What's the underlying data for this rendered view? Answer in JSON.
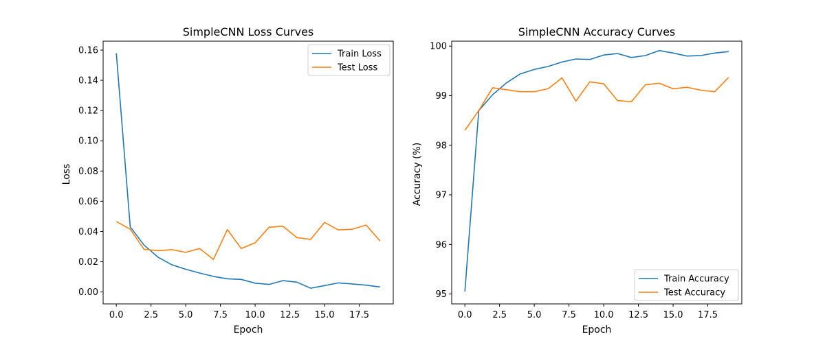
{
  "chart_data": [
    {
      "type": "line",
      "title": "SimpleCNN Loss Curves",
      "xlabel": "Epoch",
      "ylabel": "Loss",
      "xlim": [
        -0.95,
        19.95
      ],
      "ylim": [
        -0.0079,
        0.1659
      ],
      "x_ticks": [
        0,
        2.5,
        5,
        7.5,
        10,
        12.5,
        15,
        17.5
      ],
      "x_tick_labels": [
        "0.0",
        "2.5",
        "5.0",
        "7.5",
        "10.0",
        "12.5",
        "15.0",
        "17.5"
      ],
      "y_ticks": [
        0,
        0.02,
        0.04,
        0.06,
        0.08,
        0.1,
        0.12,
        0.14,
        0.16
      ],
      "y_tick_labels": [
        "0.00",
        "0.02",
        "0.04",
        "0.06",
        "0.08",
        "0.10",
        "0.12",
        "0.14",
        "0.16"
      ],
      "grid": false,
      "legend_position": "upper right",
      "x": [
        0,
        1,
        2,
        3,
        4,
        5,
        6,
        7,
        8,
        9,
        10,
        11,
        12,
        13,
        14,
        15,
        16,
        17,
        18,
        19
      ],
      "series": [
        {
          "name": "Train Loss",
          "color": "#1f77b4",
          "values": [
            0.158,
            0.043,
            0.031,
            0.023,
            0.018,
            0.015,
            0.0125,
            0.0103,
            0.0087,
            0.0083,
            0.0058,
            0.005,
            0.0075,
            0.0065,
            0.0025,
            0.0042,
            0.006,
            0.0053,
            0.0045,
            0.0033
          ]
        },
        {
          "name": "Test Loss",
          "color": "#ff7f0e",
          "values": [
            0.0466,
            0.0415,
            0.0282,
            0.0273,
            0.028,
            0.0262,
            0.0287,
            0.0215,
            0.0413,
            0.0287,
            0.0325,
            0.0428,
            0.0435,
            0.036,
            0.0348,
            0.046,
            0.041,
            0.0415,
            0.0443,
            0.0337
          ]
        }
      ]
    },
    {
      "type": "line",
      "title": "SimpleCNN Accuracy Curves",
      "xlabel": "Epoch",
      "ylabel": "Accuracy (%)",
      "xlim": [
        -0.95,
        19.95
      ],
      "ylim": [
        94.8,
        100.1
      ],
      "x_ticks": [
        0,
        2.5,
        5,
        7.5,
        10,
        12.5,
        15,
        17.5
      ],
      "x_tick_labels": [
        "0.0",
        "2.5",
        "5.0",
        "7.5",
        "10.0",
        "12.5",
        "15.0",
        "17.5"
      ],
      "y_ticks": [
        95,
        96,
        97,
        98,
        99,
        100
      ],
      "y_tick_labels": [
        "95",
        "96",
        "97",
        "98",
        "99",
        "100"
      ],
      "grid": false,
      "legend_position": "lower right",
      "x": [
        0,
        1,
        2,
        3,
        4,
        5,
        6,
        7,
        8,
        9,
        10,
        11,
        12,
        13,
        14,
        15,
        16,
        17,
        18,
        19
      ],
      "series": [
        {
          "name": "Train Accuracy",
          "color": "#1f77b4",
          "values": [
            95.05,
            98.7,
            99.02,
            99.26,
            99.44,
            99.53,
            99.59,
            99.68,
            99.74,
            99.73,
            99.82,
            99.85,
            99.77,
            99.81,
            99.91,
            99.86,
            99.8,
            99.81,
            99.86,
            99.89
          ]
        },
        {
          "name": "Test Accuracy",
          "color": "#ff7f0e",
          "values": [
            98.3,
            98.7,
            99.16,
            99.12,
            99.08,
            99.08,
            99.14,
            99.36,
            98.89,
            99.28,
            99.24,
            98.9,
            98.88,
            99.22,
            99.25,
            99.14,
            99.17,
            99.11,
            99.08,
            99.37
          ]
        }
      ]
    }
  ]
}
